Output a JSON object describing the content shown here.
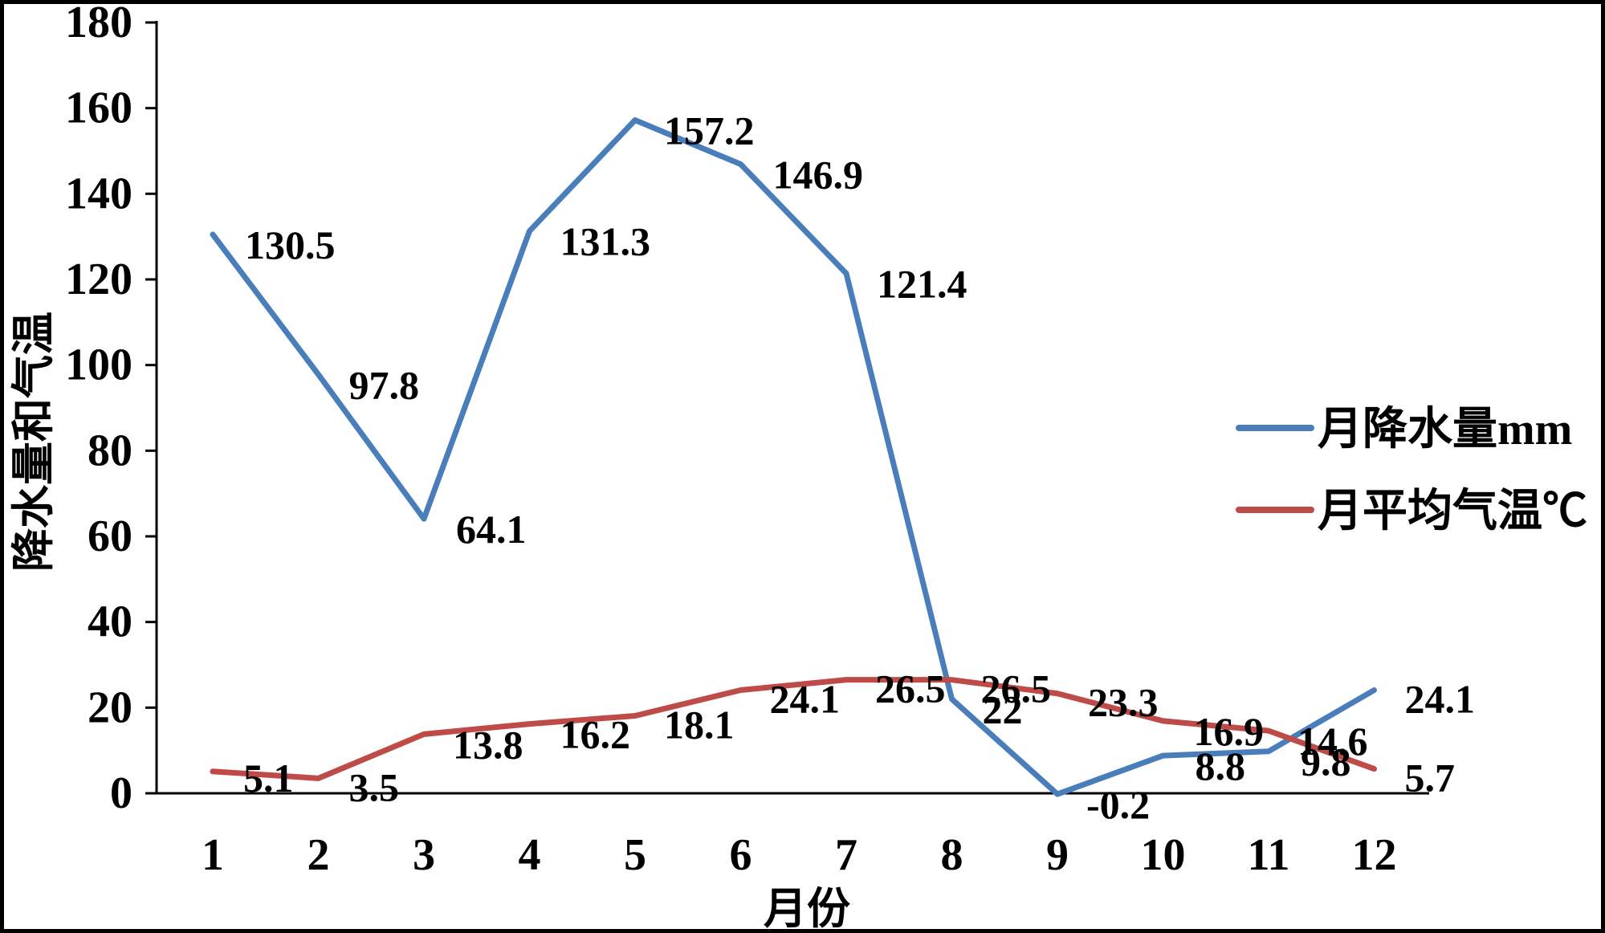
{
  "chart_data": {
    "type": "line",
    "title": "",
    "xlabel": "月份",
    "ylabel": "降水量和气温",
    "ylim": [
      0,
      180
    ],
    "yticks": [
      0,
      20,
      40,
      60,
      80,
      100,
      120,
      140,
      160,
      180
    ],
    "categories": [
      "1",
      "2",
      "3",
      "4",
      "5",
      "6",
      "7",
      "8",
      "9",
      "10",
      "11",
      "12"
    ],
    "grid": false,
    "legend_position": "right",
    "series": [
      {
        "name": "月降水量mm",
        "color": "#4a7ebb",
        "values": [
          130.5,
          97.8,
          64.1,
          131.3,
          157.2,
          146.9,
          121.4,
          22,
          -0.2,
          8.8,
          9.8,
          24.1
        ],
        "labels": [
          "130.5",
          "97.8",
          "64.1",
          "131.3",
          "157.2",
          "146.9",
          "121.4",
          "22",
          "-0.2",
          "8.8",
          "9.8",
          "24.1"
        ]
      },
      {
        "name": "月平均气温℃",
        "color": "#be4b48",
        "values": [
          5.1,
          3.5,
          13.8,
          16.2,
          18.1,
          24.1,
          26.5,
          26.5,
          23.3,
          16.9,
          14.6,
          5.7
        ],
        "labels": [
          "5.1",
          "3.5",
          "13.8",
          "16.2",
          "18.1",
          "24.1",
          "26.5",
          "26.5",
          "23.3",
          "16.9",
          "14.6",
          "5.7"
        ]
      }
    ]
  }
}
